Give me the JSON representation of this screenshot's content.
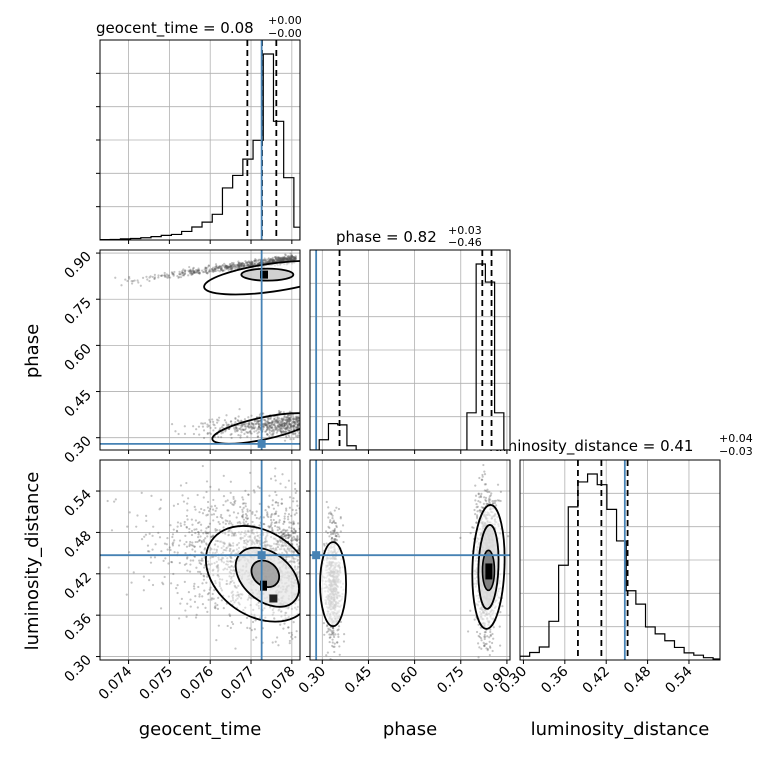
{
  "chart_data": {
    "type": "corner",
    "parameters": [
      "geocent_time",
      "phase",
      "luminosity_distance"
    ],
    "titles": {
      "geocent_time": {
        "name": "geocent_time",
        "median": "0.08",
        "plus": "+0.00",
        "minus": "−0.00"
      },
      "phase": {
        "name": "phase",
        "median": "0.82",
        "plus": "+0.03",
        "minus": "−0.46"
      },
      "luminosity_distance": {
        "name": "luminosity_distance",
        "median": "0.41",
        "plus": "+0.04",
        "minus": "−0.03"
      }
    },
    "axes": {
      "geocent_time": {
        "range": [
          0.0733,
          0.0782
        ],
        "ticks": [
          0.074,
          0.075,
          0.076,
          0.077,
          0.078
        ],
        "tick_labels": [
          "0.074",
          "0.075",
          "0.076",
          "0.077",
          "0.078"
        ]
      },
      "phase": {
        "range": [
          0.26,
          0.91
        ],
        "ticks": [
          0.3,
          0.45,
          0.6,
          0.75,
          0.9
        ],
        "tick_labels": [
          "0.30",
          "0.45",
          "0.60",
          "0.75",
          "0.90"
        ]
      },
      "luminosity_distance": {
        "range": [
          0.295,
          0.585
        ],
        "ticks": [
          0.3,
          0.36,
          0.42,
          0.48,
          0.54
        ],
        "tick_labels": [
          "0.30",
          "0.36",
          "0.42",
          "0.48",
          "0.54"
        ]
      }
    },
    "truths": {
      "geocent_time": 0.07726,
      "phase": 0.28,
      "luminosity_distance": 0.447
    },
    "quantiles": {
      "geocent_time": [
        0.07691,
        0.07727,
        0.07762
      ],
      "phase": [
        0.356,
        0.82,
        0.85
      ],
      "luminosity_distance": [
        0.379,
        0.413,
        0.451
      ]
    },
    "histograms": {
      "geocent_time": {
        "edges": [
          0.0733,
          0.07355,
          0.0738,
          0.07405,
          0.0743,
          0.07455,
          0.0748,
          0.07505,
          0.0753,
          0.07555,
          0.0758,
          0.07605,
          0.0763,
          0.07655,
          0.0768,
          0.07705,
          0.0773,
          0.07755,
          0.0778,
          0.07805,
          0.0782
        ],
        "counts": [
          0.2,
          0.3,
          0.6,
          0.8,
          1.2,
          1.8,
          2.5,
          3.0,
          4.6,
          7.0,
          9.6,
          13.8,
          28.0,
          34.7,
          43.5,
          53.6,
          100.0,
          63.8,
          33.5,
          6.9
        ]
      },
      "phase": {
        "edges": [
          0.26,
          0.29,
          0.32,
          0.35,
          0.38,
          0.41,
          0.44,
          0.47,
          0.5,
          0.53,
          0.56,
          0.59,
          0.62,
          0.65,
          0.68,
          0.71,
          0.74,
          0.77,
          0.8,
          0.83,
          0.86,
          0.89,
          0.91
        ],
        "counts": [
          0.0,
          5.5,
          14.2,
          13.5,
          2.3,
          0.0,
          0.0,
          0.0,
          0.0,
          0.0,
          0.0,
          0.0,
          0.0,
          0.0,
          0.0,
          0.0,
          0.0,
          20.0,
          100.0,
          90.3,
          20.0,
          0.0
        ]
      },
      "luminosity_distance": {
        "edges": [
          0.295,
          0.309,
          0.323,
          0.337,
          0.351,
          0.365,
          0.379,
          0.393,
          0.407,
          0.421,
          0.435,
          0.449,
          0.463,
          0.477,
          0.491,
          0.505,
          0.519,
          0.533,
          0.547,
          0.561,
          0.575,
          0.585
        ],
        "counts": [
          1.8,
          3.6,
          6.2,
          18.5,
          45.3,
          73.2,
          85.1,
          88.9,
          83.8,
          72.0,
          56.9,
          33.1,
          26.7,
          15.8,
          12.5,
          9.2,
          6.0,
          3.4,
          2.3,
          1.1,
          0.5
        ]
      }
    },
    "grid": true
  }
}
